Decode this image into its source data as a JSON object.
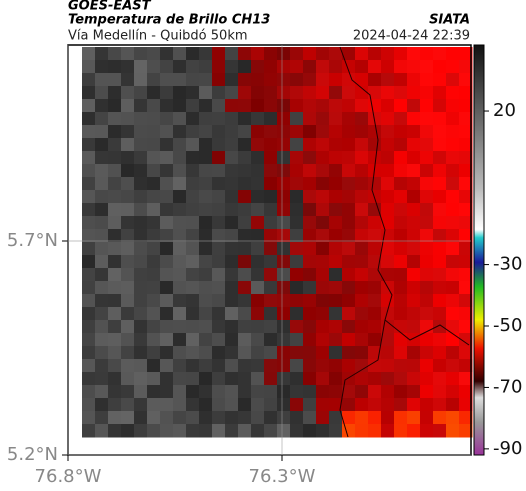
{
  "header": {
    "satellite": "GOES-EAST",
    "product": "Temperatura de Brillo CH13",
    "region": "Vía Medellín - Quibdó 50km",
    "source": "SIATA",
    "datetime": "2024-04-24 22:39"
  },
  "map": {
    "lat_ticks": [
      {
        "value": 5.7,
        "label": "5.7°N"
      },
      {
        "value": 5.2,
        "label": "5.2°N"
      }
    ],
    "lon_ticks": [
      {
        "value": -76.8,
        "label": "76.8°W"
      },
      {
        "value": -76.3,
        "label": "76.3°W"
      }
    ],
    "colorbar": {
      "clim": [
        -92,
        41.5
      ],
      "ticks": [
        20,
        -30,
        -50,
        -70,
        -90
      ]
    }
  }
}
